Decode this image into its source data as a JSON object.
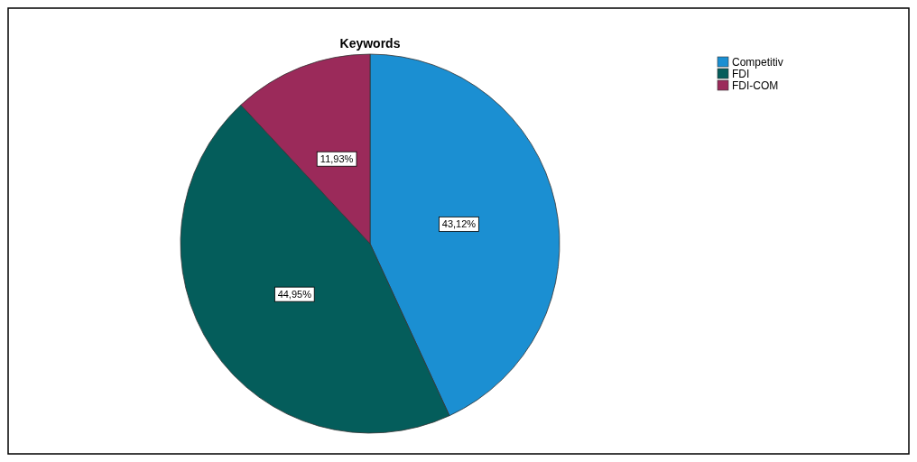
{
  "chart_data": {
    "type": "pie",
    "title": "Keywords",
    "categories": [
      "Competitiv",
      "FDI",
      "FDI-COM"
    ],
    "values": [
      43.12,
      44.95,
      11.93
    ],
    "colors": [
      "#1b8fd2",
      "#045d5b",
      "#9b2a5a"
    ],
    "value_labels": [
      "43,12%",
      "44,95%",
      "11,93%"
    ],
    "legend": "top right"
  }
}
